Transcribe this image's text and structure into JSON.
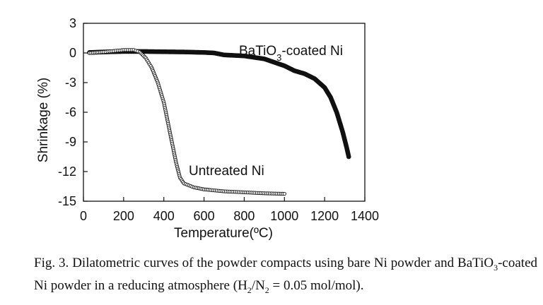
{
  "chart_data": {
    "type": "scatter",
    "xlabel": "Temperature(ºC)",
    "ylabel": "Shrinkage (%)",
    "xlim": [
      0,
      1400
    ],
    "ylim": [
      -15,
      3
    ],
    "x_ticks": [
      0,
      200,
      400,
      600,
      800,
      1000,
      1200,
      1400
    ],
    "y_ticks": [
      3,
      0,
      -3,
      -6,
      -9,
      -12,
      -15
    ],
    "grid": false,
    "legend": "none",
    "series": [
      {
        "name": "BaTiO3-coated Ni",
        "label_main": "BaTiO",
        "label_sub": "3",
        "label_rest": "-coated Ni",
        "marker": "filled-circle",
        "color": "#111111",
        "points": [
          [
            30,
            0.05
          ],
          [
            100,
            0.1
          ],
          [
            200,
            0.15
          ],
          [
            300,
            0.15
          ],
          [
            400,
            0.12
          ],
          [
            500,
            0.1
          ],
          [
            600,
            0.05
          ],
          [
            650,
            0.0
          ],
          [
            700,
            -0.2
          ],
          [
            800,
            -0.3
          ],
          [
            900,
            -0.6
          ],
          [
            1000,
            -1.3
          ],
          [
            1050,
            -1.8
          ],
          [
            1100,
            -2.1
          ],
          [
            1150,
            -2.6
          ],
          [
            1200,
            -3.5
          ],
          [
            1230,
            -4.5
          ],
          [
            1260,
            -6.0
          ],
          [
            1290,
            -8.0
          ],
          [
            1310,
            -9.6
          ],
          [
            1320,
            -10.5
          ]
        ]
      },
      {
        "name": "Untreated Ni",
        "label_main": "Untreated Ni",
        "marker": "open-circle",
        "color": "#111111",
        "points": [
          [
            30,
            0.0
          ],
          [
            100,
            0.1
          ],
          [
            150,
            0.2
          ],
          [
            200,
            0.3
          ],
          [
            250,
            0.3
          ],
          [
            280,
            0.1
          ],
          [
            310,
            -0.5
          ],
          [
            340,
            -1.5
          ],
          [
            370,
            -3.0
          ],
          [
            400,
            -5.0
          ],
          [
            420,
            -7.0
          ],
          [
            440,
            -9.0
          ],
          [
            460,
            -11.0
          ],
          [
            480,
            -12.6
          ],
          [
            500,
            -13.2
          ],
          [
            550,
            -13.6
          ],
          [
            600,
            -13.8
          ],
          [
            700,
            -14.0
          ],
          [
            800,
            -14.1
          ],
          [
            900,
            -14.2
          ],
          [
            1000,
            -14.25
          ]
        ]
      }
    ]
  },
  "caption": {
    "part1": "Fig. 3. Dilatometric curves of the powder compacts using bare Ni powder and BaTiO",
    "sub1": "3",
    "part2": "-coated Ni powder in a reducing atmosphere (H",
    "sub2": "2",
    "part3": "/N",
    "sub3": "2",
    "part4": " = 0.05 mol/mol)."
  }
}
